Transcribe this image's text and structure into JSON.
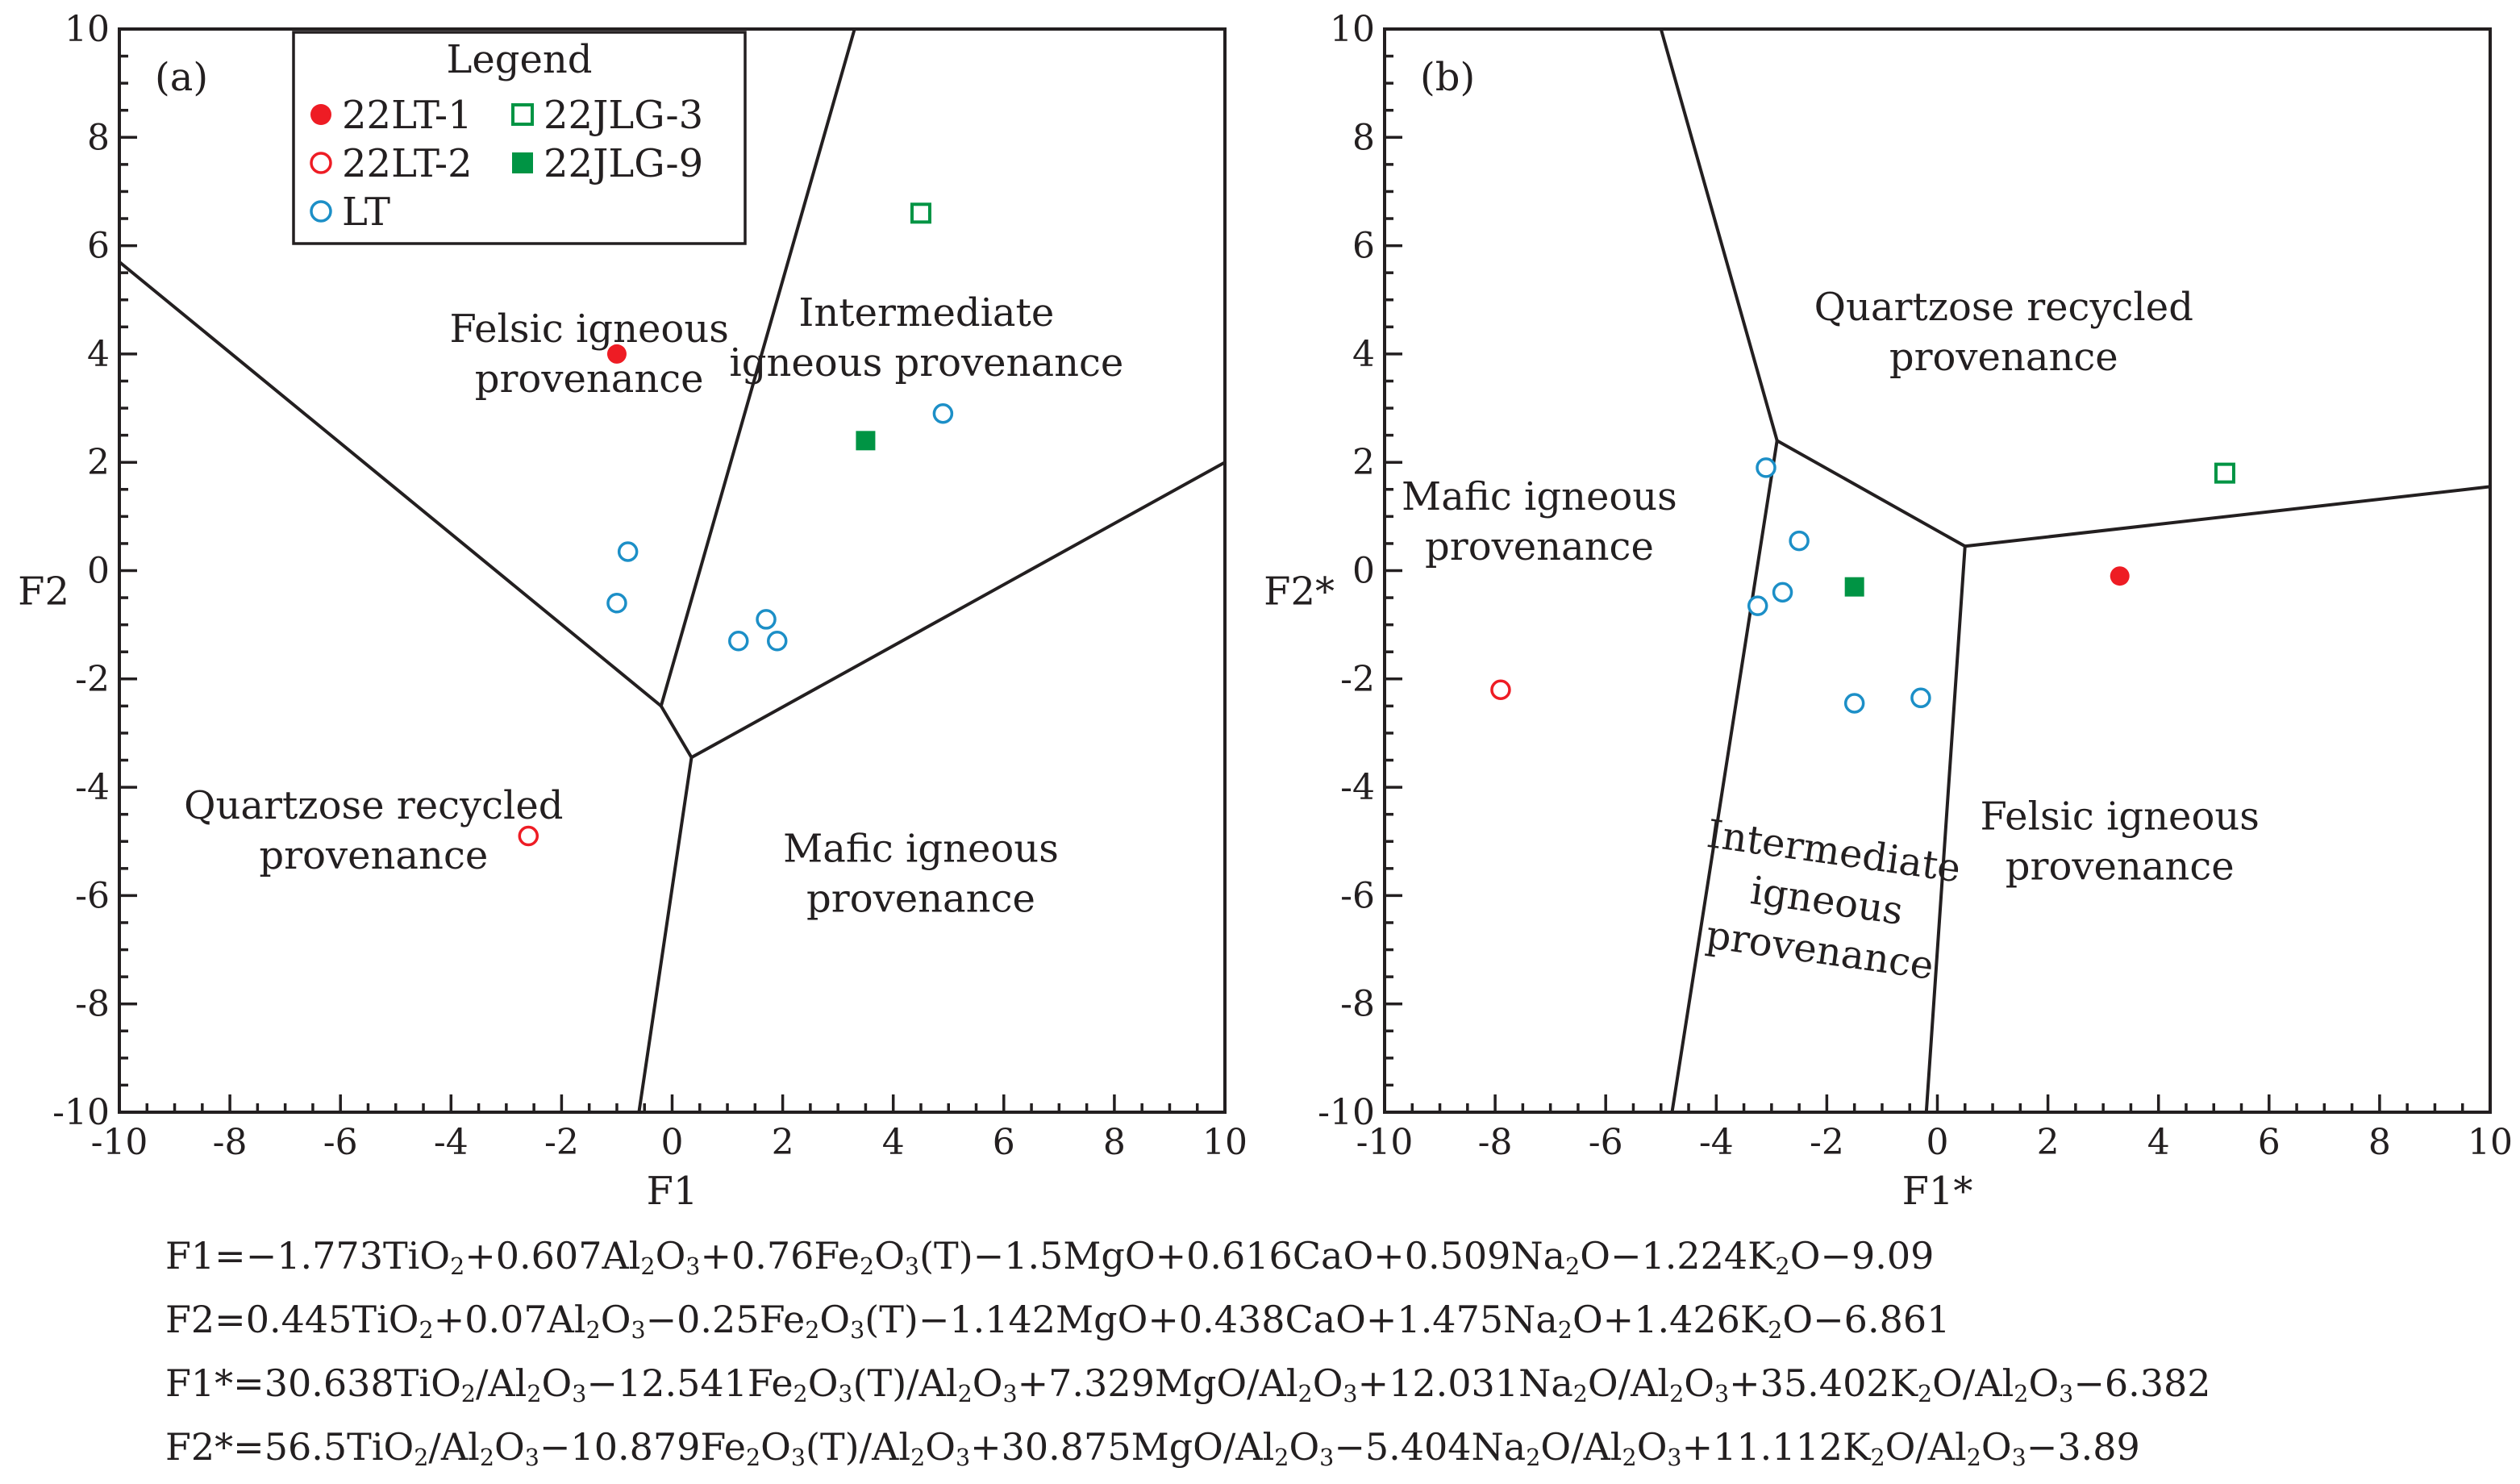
{
  "chart_data": [
    {
      "type": "scatter",
      "panel_label": "(a)",
      "xlabel": "F1",
      "ylabel": "F2",
      "xlim": [
        -10,
        10
      ],
      "ylim": [
        -10,
        10
      ],
      "xticks": [
        "-10",
        "-8",
        "-6",
        "-4",
        "-2",
        "0",
        "2",
        "4",
        "6",
        "8",
        "10"
      ],
      "yticks": [
        "10",
        "8",
        "6",
        "4",
        "2",
        "0",
        "-2",
        "-4",
        "-6",
        "-8",
        "-10"
      ],
      "legend": {
        "title": "Legend",
        "entries": [
          {
            "name": "22LT-1",
            "marker": "filled-circle",
            "color": "#ee1c24"
          },
          {
            "name": "22JLG-3",
            "marker": "open-square",
            "color": "#009444"
          },
          {
            "name": "22LT-2",
            "marker": "open-circle",
            "color": "#ee1c24"
          },
          {
            "name": "22JLG-9",
            "marker": "filled-square",
            "color": "#009444"
          },
          {
            "name": "LT",
            "marker": "open-circle",
            "color": "#1c8fc7"
          }
        ]
      },
      "fields": [
        {
          "lines": [
            "Felsic igneous",
            "provenance"
          ],
          "at": [
            -1.5,
            4.0
          ]
        },
        {
          "lines": [
            "Intermediate",
            "igneous provenance"
          ],
          "at": [
            4.6,
            4.3
          ]
        },
        {
          "lines": [
            "Quartzose recycled",
            "provenance"
          ],
          "at": [
            -5.4,
            -4.8
          ]
        },
        {
          "lines": [
            "Mafic igneous",
            "provenance"
          ],
          "at": [
            4.5,
            -5.6
          ]
        }
      ],
      "boundaries": [
        [
          [
            -10,
            5.7
          ],
          [
            -0.2,
            -2.5
          ]
        ],
        [
          [
            -0.2,
            -2.5
          ],
          [
            3.3,
            10
          ]
        ],
        [
          [
            -0.2,
            -2.5
          ],
          [
            0.35,
            -3.45
          ]
        ],
        [
          [
            0.35,
            -3.45
          ],
          [
            10,
            2.0
          ]
        ],
        [
          [
            0.35,
            -3.45
          ],
          [
            -0.6,
            -10
          ]
        ]
      ],
      "series": [
        {
          "name": "22LT-1",
          "points": [
            [
              -1.0,
              4.0
            ]
          ]
        },
        {
          "name": "22LT-2",
          "points": [
            [
              -2.6,
              -4.9
            ]
          ]
        },
        {
          "name": "22JLG-3",
          "points": [
            [
              4.5,
              6.6
            ]
          ]
        },
        {
          "name": "22JLG-9",
          "points": [
            [
              3.5,
              2.4
            ]
          ]
        },
        {
          "name": "LT",
          "points": [
            [
              -0.8,
              0.35
            ],
            [
              -1.0,
              -0.6
            ],
            [
              1.2,
              -1.3
            ],
            [
              1.7,
              -0.9
            ],
            [
              1.9,
              -1.3
            ],
            [
              4.9,
              2.9
            ]
          ]
        }
      ]
    },
    {
      "type": "scatter",
      "panel_label": "(b)",
      "xlabel": "F1*",
      "ylabel": "F2*",
      "xlim": [
        -10,
        10
      ],
      "ylim": [
        -10,
        10
      ],
      "xticks": [
        "-10",
        "-8",
        "-6",
        "-4",
        "-2",
        "0",
        "2",
        "4",
        "6",
        "8",
        "10"
      ],
      "yticks": [
        "10",
        "8",
        "6",
        "4",
        "2",
        "0",
        "-2",
        "-4",
        "-6",
        "-8",
        "-10"
      ],
      "fields": [
        {
          "lines": [
            "Quartzose recycled",
            "provenance"
          ],
          "at": [
            1.2,
            4.4
          ]
        },
        {
          "lines": [
            "Mafic igneous",
            "provenance"
          ],
          "at": [
            -7.2,
            0.9
          ]
        },
        {
          "lines": [
            "Felsic igneous",
            "provenance"
          ],
          "at": [
            3.3,
            -5.0
          ]
        },
        {
          "lines": [
            "Intermediate",
            "igneous",
            "provenance"
          ],
          "at": [
            -2.0,
            -6.1
          ],
          "rotate": 8
        }
      ],
      "boundaries": [
        [
          [
            -5.0,
            10
          ],
          [
            -2.9,
            2.4
          ]
        ],
        [
          [
            -2.9,
            2.4
          ],
          [
            -4.8,
            -10
          ]
        ],
        [
          [
            -2.9,
            2.4
          ],
          [
            0.5,
            0.45
          ]
        ],
        [
          [
            0.5,
            0.45
          ],
          [
            10,
            1.55
          ]
        ],
        [
          [
            0.5,
            0.45
          ],
          [
            -0.2,
            -10
          ]
        ]
      ],
      "series": [
        {
          "name": "22LT-1",
          "points": [
            [
              3.3,
              -0.1
            ]
          ]
        },
        {
          "name": "22LT-2",
          "points": [
            [
              -7.9,
              -2.2
            ]
          ]
        },
        {
          "name": "22JLG-3",
          "points": [
            [
              5.2,
              1.8
            ]
          ]
        },
        {
          "name": "22JLG-9",
          "points": [
            [
              -1.5,
              -0.3
            ]
          ]
        },
        {
          "name": "LT",
          "points": [
            [
              -3.1,
              1.9
            ],
            [
              -2.5,
              0.55
            ],
            [
              -2.8,
              -0.4
            ],
            [
              -3.25,
              -0.65
            ],
            [
              -1.5,
              -2.45
            ],
            [
              -0.3,
              -2.35
            ]
          ]
        }
      ]
    }
  ],
  "formulas": [
    [
      {
        "t": "F1=−1.773TiO"
      },
      {
        "s": "2"
      },
      {
        "t": "+0.607Al"
      },
      {
        "s": "2"
      },
      {
        "t": "O"
      },
      {
        "s": "3"
      },
      {
        "t": "+0.76Fe"
      },
      {
        "s": "2"
      },
      {
        "t": "O"
      },
      {
        "s": "3"
      },
      {
        "t": "(T)−1.5MgO+0.616CaO+0.509Na"
      },
      {
        "s": "2"
      },
      {
        "t": "O−1.224K"
      },
      {
        "s": "2"
      },
      {
        "t": "O−9.09"
      }
    ],
    [
      {
        "t": "F2=0.445TiO"
      },
      {
        "s": "2"
      },
      {
        "t": "+0.07Al"
      },
      {
        "s": "2"
      },
      {
        "t": "O"
      },
      {
        "s": "3"
      },
      {
        "t": "−0.25Fe"
      },
      {
        "s": "2"
      },
      {
        "t": "O"
      },
      {
        "s": "3"
      },
      {
        "t": "(T)−1.142MgO+0.438CaO+1.475Na"
      },
      {
        "s": "2"
      },
      {
        "t": "O+1.426K"
      },
      {
        "s": "2"
      },
      {
        "t": "O−6.861"
      }
    ],
    [
      {
        "t": "F1*=30.638TiO"
      },
      {
        "s": "2"
      },
      {
        "t": "/Al"
      },
      {
        "s": "2"
      },
      {
        "t": "O"
      },
      {
        "s": "3"
      },
      {
        "t": "−12.541Fe"
      },
      {
        "s": "2"
      },
      {
        "t": "O"
      },
      {
        "s": "3"
      },
      {
        "t": "(T)/Al"
      },
      {
        "s": "2"
      },
      {
        "t": "O"
      },
      {
        "s": "3"
      },
      {
        "t": "+7.329MgO/Al"
      },
      {
        "s": "2"
      },
      {
        "t": "O"
      },
      {
        "s": "3"
      },
      {
        "t": "+12.031Na"
      },
      {
        "s": "2"
      },
      {
        "t": "O/Al"
      },
      {
        "s": "2"
      },
      {
        "t": "O"
      },
      {
        "s": "3"
      },
      {
        "t": "+35.402K"
      },
      {
        "s": "2"
      },
      {
        "t": "O/Al"
      },
      {
        "s": "2"
      },
      {
        "t": "O"
      },
      {
        "s": "3"
      },
      {
        "t": "−6.382"
      }
    ],
    [
      {
        "t": "F2*=56.5TiO"
      },
      {
        "s": "2"
      },
      {
        "t": "/Al"
      },
      {
        "s": "2"
      },
      {
        "t": "O"
      },
      {
        "s": "3"
      },
      {
        "t": "−10.879Fe"
      },
      {
        "s": "2"
      },
      {
        "t": "O"
      },
      {
        "s": "3"
      },
      {
        "t": "(T)/Al"
      },
      {
        "s": "2"
      },
      {
        "t": "O"
      },
      {
        "s": "3"
      },
      {
        "t": "+30.875MgO/Al"
      },
      {
        "s": "2"
      },
      {
        "t": "O"
      },
      {
        "s": "3"
      },
      {
        "t": "−5.404Na"
      },
      {
        "s": "2"
      },
      {
        "t": "O/Al"
      },
      {
        "s": "2"
      },
      {
        "t": "O"
      },
      {
        "s": "3"
      },
      {
        "t": "+11.112K"
      },
      {
        "s": "2"
      },
      {
        "t": "O/Al"
      },
      {
        "s": "2"
      },
      {
        "t": "O"
      },
      {
        "s": "3"
      },
      {
        "t": "−3.89"
      }
    ]
  ]
}
